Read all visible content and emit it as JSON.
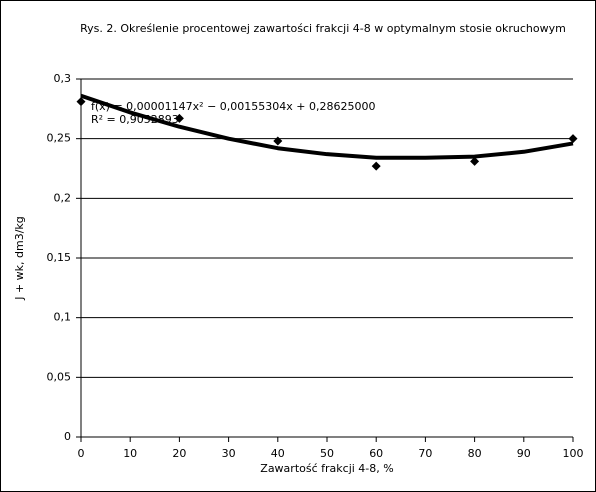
{
  "chart_data": {
    "type": "scatter",
    "title": "Rys. 2. Określenie procentowej zawartości frakcji 4-8 w optymalnym stosie okruchowym",
    "x_label": "Zawartość frakcji 4-8, %",
    "y_label": "J + wk, dm3/kg",
    "annotations": [
      "f(x) = 0,00001147x² − 0,00155304x + 0,28625000",
      "R² = 0,9052893"
    ],
    "series": [
      {
        "x": [
          0,
          20,
          40,
          60,
          80,
          100
        ],
        "values": [
          0.281,
          0.267,
          0.248,
          0.227,
          0.231,
          0.25
        ],
        "color": "#000000",
        "marker": "diamond"
      },
      {
        "x": [
          0,
          10,
          20,
          30,
          40,
          50,
          60,
          70,
          80,
          90,
          100
        ],
        "values": [
          0.286,
          0.272,
          0.26,
          0.25,
          0.242,
          0.237,
          0.234,
          0.234,
          0.235,
          0.239,
          0.246
        ],
        "color": "#000000",
        "marker": "line"
      }
    ],
    "xlim": [
      0,
      100
    ],
    "xticks": [
      0,
      10,
      20,
      30,
      40,
      50,
      60,
      70,
      80,
      90,
      100
    ],
    "ylim": [
      0,
      0.3
    ],
    "yticks": [
      {
        "value": 0,
        "label": "0"
      },
      {
        "value": 0.05,
        "label": "0,05"
      },
      {
        "value": 0.1,
        "label": "0,1"
      },
      {
        "value": 0.15,
        "label": "0,15"
      },
      {
        "value": 0.2,
        "label": "0,2"
      },
      {
        "value": 0.25,
        "label": "0,25"
      },
      {
        "value": 0.3,
        "label": "0,3"
      }
    ],
    "grid": true
  }
}
